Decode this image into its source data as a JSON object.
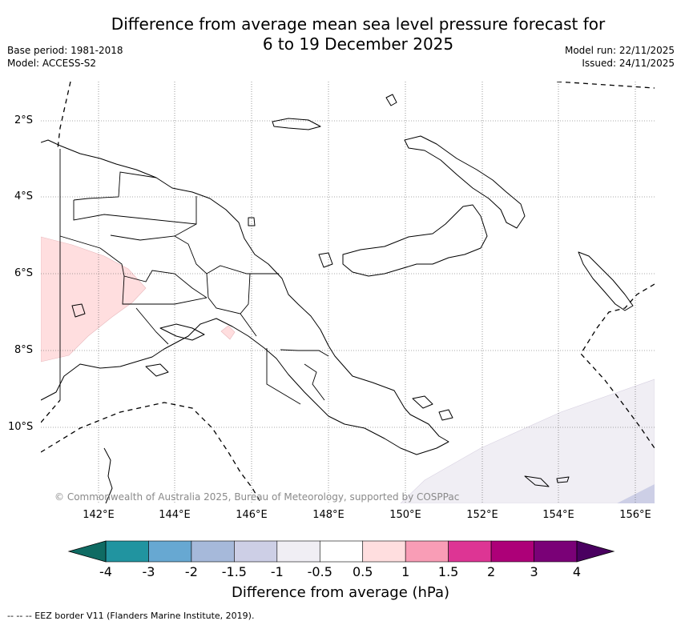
{
  "title_line1": "Difference from average mean sea level pressure forecast for",
  "title_line2": "6 to 19 December 2025",
  "base_period": "Base period: 1981-2018",
  "model": "Model: ACCESS-S2",
  "model_run": "Model run: 22/11/2025",
  "issued": "Issued: 24/11/2025",
  "lat_labels": [
    "2°S",
    "4°S",
    "6°S",
    "8°S",
    "10°S"
  ],
  "lon_labels": [
    "142°E",
    "144°E",
    "146°E",
    "148°E",
    "150°E",
    "152°E",
    "154°E",
    "156°E"
  ],
  "copyright": "© Commonwealth of Australia 2025, Bureau of Meteorology, supported by COSPPac",
  "colorbar": {
    "title": "Difference from average (hPa)",
    "tick_labels": [
      "-4",
      "-3",
      "-2",
      "-1.5",
      "-1",
      "-0.5",
      "0.5",
      "1",
      "1.5",
      "2",
      "3",
      "4"
    ],
    "colors": [
      "#0f6b63",
      "#2194a0",
      "#67a8d2",
      "#a6b9da",
      "#cdcfe6",
      "#f0eef4",
      "#ffffff",
      "#ffdedf",
      "#f99db6",
      "#dd3594",
      "#ad0078",
      "#7a0177",
      "#4a0060"
    ]
  },
  "eez_legend": "--  --  -- EEZ border V11 (Flanders Marine Institute, 2019)."
}
